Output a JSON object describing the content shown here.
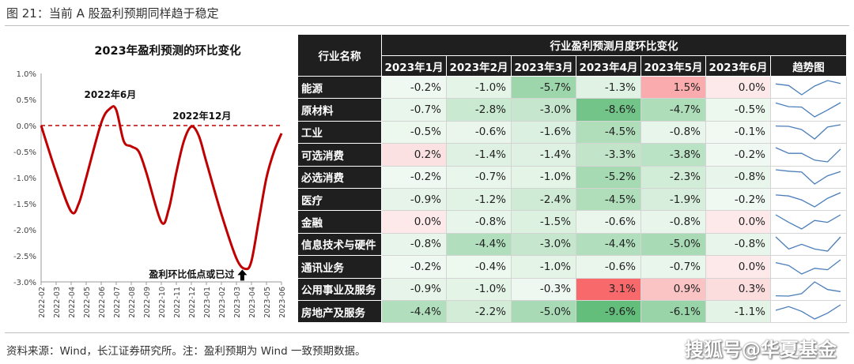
{
  "figure": {
    "title": "图 21：当前 A 股盈利预期同样趋于稳定",
    "source": "资料来源：Wind，长江证券研究所。注：盈利预期为 Wind 一致预期数据。",
    "watermark": "搜狐号@华夏基金"
  },
  "chart_data": [
    {
      "type": "line",
      "title": "2023年盈利预测的环比变化",
      "x": [
        "2022-02",
        "2022-03",
        "2022-04",
        "2022-05",
        "2022-06",
        "2022-07",
        "2022-08",
        "2022-09",
        "2022-10",
        "2022-11",
        "2022-12",
        "2023-01",
        "2023-02",
        "2023-03",
        "2023-04",
        "2023-05",
        "2023-06"
      ],
      "y_ticks": [
        "1.0%",
        "0.5%",
        "0.0%",
        "-0.5%",
        "-1.0%",
        "-1.5%",
        "-2.0%",
        "-2.5%",
        "-3.0%"
      ],
      "ylim": [
        -3.0,
        1.0
      ],
      "line_color": "#c00000",
      "reference_line": {
        "y": 0.0,
        "style": "dashed",
        "color": "#c00000"
      },
      "annotations": [
        {
          "text": "2022年6月",
          "x": "2022-06"
        },
        {
          "text": "2022年12月",
          "x": "2022-12"
        },
        {
          "text": "盈利环比低点或已过",
          "x": "2023-04",
          "arrow": "up"
        }
      ],
      "curve": [
        [
          0.0,
          0.0
        ],
        [
          1.0,
          -0.9
        ],
        [
          2.0,
          -1.65
        ],
        [
          2.5,
          -1.5
        ],
        [
          3.0,
          -1.0
        ],
        [
          4.0,
          0.05
        ],
        [
          4.6,
          0.33
        ],
        [
          5.0,
          0.3
        ],
        [
          5.5,
          -0.3
        ],
        [
          6.0,
          -0.4
        ],
        [
          6.5,
          -0.5
        ],
        [
          7.0,
          -0.9
        ],
        [
          8.0,
          -1.85
        ],
        [
          8.5,
          -1.6
        ],
        [
          9.0,
          -0.9
        ],
        [
          9.5,
          -0.3
        ],
        [
          10.0,
          -0.02
        ],
        [
          10.5,
          -0.2
        ],
        [
          11.0,
          -0.7
        ],
        [
          12.0,
          -1.7
        ],
        [
          13.0,
          -2.55
        ],
        [
          13.6,
          -2.75
        ],
        [
          14.0,
          -2.6
        ],
        [
          14.5,
          -1.8
        ],
        [
          15.0,
          -1.0
        ],
        [
          15.5,
          -0.5
        ],
        [
          16.0,
          -0.15
        ]
      ]
    },
    {
      "type": "table",
      "group_header": "行业盈利预测月度环比变化",
      "row_header": "行业名称",
      "columns": [
        "2023年1月",
        "2023年2月",
        "2023年3月",
        "2023年4月",
        "2023年5月",
        "2023年6月"
      ],
      "trend_header": "趋势图",
      "rows": [
        {
          "name": "能源",
          "values": [
            -0.2,
            -1.0,
            -5.7,
            -1.3,
            1.5,
            0.0
          ]
        },
        {
          "name": "原材料",
          "values": [
            -0.7,
            -2.8,
            -3.0,
            -8.6,
            -4.7,
            -0.5
          ]
        },
        {
          "name": "工业",
          "values": [
            -0.5,
            -0.6,
            -1.6,
            -4.5,
            -0.8,
            -0.1
          ]
        },
        {
          "name": "可选消费",
          "values": [
            0.2,
            -1.4,
            -1.4,
            -3.3,
            -3.8,
            -0.2
          ]
        },
        {
          "name": "必选消费",
          "values": [
            -0.2,
            -0.7,
            -1.0,
            -5.2,
            -2.3,
            -0.8
          ]
        },
        {
          "name": "医疗",
          "values": [
            -0.9,
            -1.2,
            -2.4,
            -4.5,
            -1.9,
            -0.2
          ]
        },
        {
          "name": "金融",
          "values": [
            0.0,
            -0.8,
            -1.5,
            -0.6,
            -0.8,
            0.0
          ]
        },
        {
          "name": "信息技术与硬件",
          "values": [
            -0.8,
            -4.4,
            -3.0,
            -4.4,
            -5.0,
            -0.8
          ]
        },
        {
          "name": "通讯业务",
          "values": [
            -0.2,
            -0.4,
            -1.0,
            -0.6,
            -0.7,
            0.0
          ]
        },
        {
          "name": "公用事业及服务",
          "values": [
            -0.9,
            -1.0,
            -0.3,
            3.1,
            0.9,
            0.3
          ]
        },
        {
          "name": "房地产及服务",
          "values": [
            -4.4,
            -2.2,
            -5.0,
            -9.6,
            -6.1,
            -1.1
          ]
        }
      ],
      "value_format": "one decimal percent",
      "heat_colors": {
        "negative": "#63be7b",
        "positive": "#f8696b",
        "neutral": "#fcfcff"
      },
      "sparkline_color": "#4a7ebb"
    }
  ]
}
